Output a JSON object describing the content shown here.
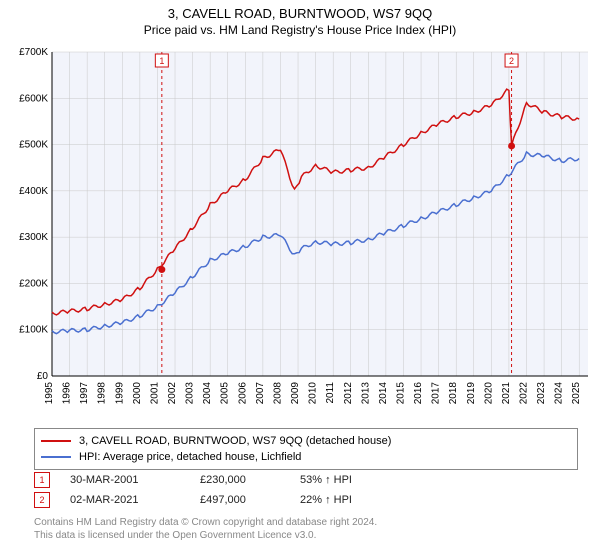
{
  "title_line1": "3, CAVELL ROAD, BURNTWOOD, WS7 9QQ",
  "title_line2": "Price paid vs. HM Land Registry's House Price Index (HPI)",
  "title_fontsize": 13,
  "subtitle_fontsize": 12,
  "chart": {
    "type": "line",
    "background_color": "#ffffff",
    "plot_area_fill": "#f2f4fb",
    "grid_color": "#c8c8c8",
    "grid_stroke_width": 0.5,
    "axis_color": "#000000",
    "x": {
      "ticks": [
        1995,
        1996,
        1997,
        1998,
        1999,
        2000,
        2001,
        2002,
        2003,
        2004,
        2005,
        2006,
        2007,
        2008,
        2009,
        2010,
        2011,
        2012,
        2013,
        2014,
        2015,
        2016,
        2017,
        2018,
        2019,
        2020,
        2021,
        2022,
        2023,
        2024,
        2025
      ],
      "tick_fontsize": 10,
      "rotation": -90,
      "xlim": [
        1995,
        2025.5
      ]
    },
    "y": {
      "ticks": [
        0,
        100000,
        200000,
        300000,
        400000,
        500000,
        600000,
        700000
      ],
      "tick_labels": [
        "£0",
        "£100K",
        "£200K",
        "£300K",
        "£400K",
        "£500K",
        "£600K",
        "£700K"
      ],
      "tick_fontsize": 10,
      "ylim": [
        0,
        700000
      ]
    },
    "series": [
      {
        "name": "property",
        "label": "3, CAVELL ROAD, BURNTWOOD, WS7 9QQ (detached house)",
        "color": "#d01010",
        "stroke_width": 1.5,
        "x": [
          1995,
          1996,
          1997,
          1998,
          1999,
          2000,
          2001,
          2002,
          2003,
          2004,
          2005,
          2006,
          2007,
          2008,
          2008.8,
          2009.2,
          2010,
          2011,
          2012,
          2013,
          2014,
          2015,
          2016,
          2017,
          2018,
          2019,
          2020,
          2021,
          2021.15,
          2022,
          2023,
          2024,
          2025
        ],
        "y": [
          135000,
          140000,
          145000,
          155000,
          165000,
          190000,
          230000,
          275000,
          320000,
          370000,
          400000,
          425000,
          470000,
          490000,
          400000,
          430000,
          455000,
          440000,
          445000,
          450000,
          475000,
          500000,
          525000,
          545000,
          560000,
          570000,
          585000,
          620000,
          497000,
          590000,
          570000,
          560000,
          555000
        ]
      },
      {
        "name": "hpi",
        "label": "HPI: Average price, detached house, Lichfield",
        "color": "#4a6fd0",
        "stroke_width": 1.5,
        "x": [
          1995,
          1996,
          1997,
          1998,
          1999,
          2000,
          2001,
          2002,
          2003,
          2004,
          2005,
          2006,
          2007,
          2008,
          2008.8,
          2009.2,
          2010,
          2011,
          2012,
          2013,
          2014,
          2015,
          2016,
          2017,
          2018,
          2019,
          2020,
          2021,
          2022,
          2023,
          2024,
          2025
        ],
        "y": [
          95000,
          98000,
          100000,
          108000,
          115000,
          130000,
          150000,
          180000,
          215000,
          250000,
          265000,
          280000,
          300000,
          305000,
          260000,
          275000,
          290000,
          285000,
          288000,
          295000,
          310000,
          325000,
          340000,
          355000,
          370000,
          385000,
          400000,
          435000,
          480000,
          475000,
          465000,
          470000
        ]
      }
    ],
    "sale_markers": [
      {
        "n": "1",
        "x": 2001.25,
        "y": 230000,
        "color": "#d01010",
        "line_dash": "3,3"
      },
      {
        "n": "2",
        "x": 2021.15,
        "y": 497000,
        "color": "#d01010",
        "line_dash": "3,3"
      }
    ],
    "marker_box": {
      "size": 13,
      "border_width": 1,
      "font_size": 9,
      "fill": "#ffffff"
    }
  },
  "legend": {
    "border_color": "#888888",
    "fontsize": 11
  },
  "sales": [
    {
      "n": "1",
      "date": "30-MAR-2001",
      "price": "£230,000",
      "delta": "53% ↑ HPI",
      "marker_color": "#d01010"
    },
    {
      "n": "2",
      "date": "02-MAR-2021",
      "price": "£497,000",
      "delta": "22% ↑ HPI",
      "marker_color": "#d01010"
    }
  ],
  "attribution_line1": "Contains HM Land Registry data © Crown copyright and database right 2024.",
  "attribution_line2": "This data is licensed under the Open Government Licence v3.0."
}
